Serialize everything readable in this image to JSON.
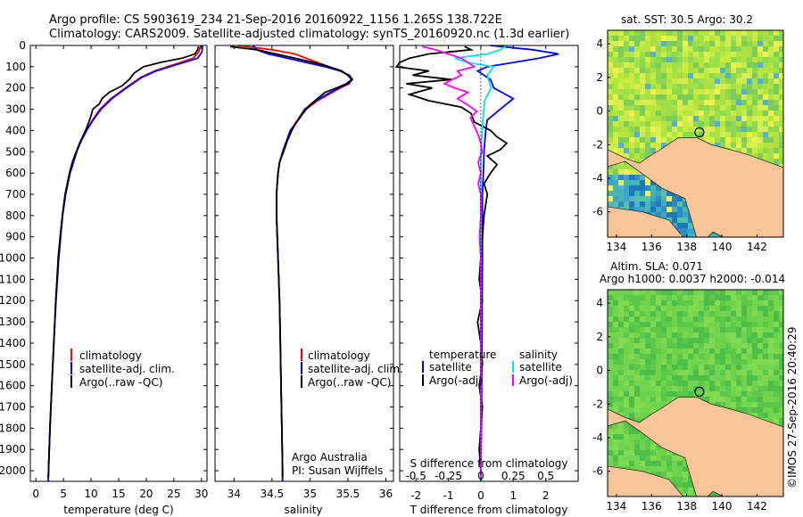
{
  "header": {
    "line1": "Argo profile: CS 5903619_234 21-Sep-2016 20160922_1156 1.265S 138.722E",
    "line2": "Climatology: CARS2009. Satellite-adjusted climatology: synTS_20160920.nc (1.3d earlier)"
  },
  "depth_ticks": [
    "0",
    "100",
    "200",
    "300",
    "400",
    "500",
    "600",
    "700",
    "800",
    "900",
    "1000",
    "1100",
    "1200",
    "1300",
    "1400",
    "1500",
    "1600",
    "1700",
    "1800",
    "1900",
    "2000"
  ],
  "colors": {
    "climatology": "#ff0000",
    "satellite": "#0000ff",
    "argo": "#000000",
    "cyan": "#00e5ee",
    "magenta": "#ff00ff",
    "land": "#f9c598",
    "sst_warm": "#a8e040",
    "sst_cool": "#2090c0"
  },
  "chart_data": [
    {
      "type": "line",
      "panel": "temperature",
      "xlabel": "temperature (deg C)",
      "xlim": [
        -1,
        31
      ],
      "ylim": [
        2050,
        0
      ],
      "xticks": [
        0,
        5,
        10,
        15,
        20,
        25,
        30
      ],
      "xtick_labels": [
        "0",
        "5",
        "10",
        "15",
        "20",
        "25",
        "30"
      ],
      "legend": [
        "climatology",
        "satellite-adj. clim.",
        "Argo(..raw -QC)"
      ],
      "series": [
        {
          "name": "climatology",
          "depth": [
            0,
            30,
            60,
            90,
            120,
            150,
            200,
            250,
            300,
            350,
            400,
            450,
            500,
            600,
            700,
            800,
            900,
            1000,
            1200,
            1400,
            1600,
            1800,
            2000,
            2050
          ],
          "values": [
            29.9,
            29.5,
            28.5,
            25,
            21.5,
            19,
            16.2,
            13.6,
            11.6,
            10.3,
            9.1,
            8.1,
            7.3,
            6.1,
            5.3,
            4.8,
            4.45,
            4.1,
            3.6,
            3.25,
            2.9,
            2.55,
            2.3,
            2.25
          ]
        },
        {
          "name": "satellite-adj. clim.",
          "depth": [
            0,
            30,
            60,
            90,
            120,
            150,
            200,
            250,
            300,
            350,
            400,
            450,
            500,
            600,
            700,
            800,
            900,
            1000,
            1200,
            1400,
            1600,
            1800,
            2000,
            2050
          ],
          "values": [
            30.2,
            30.1,
            29.3,
            25.5,
            21.8,
            19.2,
            16.4,
            13.8,
            11.8,
            10.4,
            9.2,
            8.2,
            7.4,
            6.2,
            5.4,
            4.85,
            4.5,
            4.15,
            3.65,
            3.25,
            2.9,
            2.55,
            2.3,
            2.25
          ]
        },
        {
          "name": "Argo(..raw -QC)",
          "depth": [
            5,
            20,
            40,
            60,
            80,
            100,
            130,
            160,
            190,
            220,
            250,
            275,
            300,
            330,
            360,
            400,
            450,
            500,
            550,
            600,
            650,
            700,
            800,
            900,
            1000,
            1200,
            1400,
            1600,
            1800,
            2000,
            2030
          ],
          "values": [
            29.5,
            29.3,
            28.8,
            26.5,
            22.5,
            19.5,
            17.8,
            16.9,
            15.6,
            13.3,
            12.0,
            11.5,
            10.3,
            10.0,
            9.6,
            9.0,
            8.1,
            7.3,
            6.6,
            6.1,
            5.7,
            5.3,
            4.8,
            4.4,
            4.05,
            3.6,
            3.25,
            2.9,
            2.55,
            2.3,
            2.25
          ]
        }
      ]
    },
    {
      "type": "line",
      "panel": "salinity",
      "xlabel": "salinity",
      "xlim": [
        33.75,
        36.1
      ],
      "ylim": [
        2050,
        0
      ],
      "xticks": [
        34,
        34.5,
        35,
        35.5,
        36
      ],
      "xtick_labels": [
        "34",
        "34.5",
        "35",
        "35.5",
        "36"
      ],
      "legend": [
        "climatology",
        "satellite-adj. clim.",
        "Argo(..raw -QC)"
      ],
      "annotation1": "Argo Australia",
      "annotation2": "PI: Susan Wijffels",
      "series": [
        {
          "name": "climatology",
          "depth": [
            0,
            20,
            40,
            60,
            80,
            100,
            120,
            140,
            160,
            180,
            200,
            230,
            260,
            300,
            350,
            400,
            450,
            500,
            550,
            600,
            700,
            800,
            900,
            1000,
            1200,
            1400,
            1600,
            1800,
            2000,
            2050
          ],
          "values": [
            34.05,
            34.5,
            34.8,
            34.95,
            35.1,
            35.25,
            35.4,
            35.5,
            35.55,
            35.52,
            35.4,
            35.25,
            35.1,
            34.95,
            34.85,
            34.75,
            34.7,
            34.65,
            34.6,
            34.58,
            34.56,
            34.56,
            34.57,
            34.58,
            34.6,
            34.61,
            34.62,
            34.63,
            34.64,
            34.64
          ]
        },
        {
          "name": "satellite-adj. clim.",
          "depth": [
            0,
            20,
            40,
            60,
            80,
            100,
            120,
            140,
            160,
            180,
            200,
            230,
            260,
            300,
            350,
            400,
            450,
            500,
            550,
            600,
            700,
            800,
            900,
            1000,
            1200,
            1400,
            1600,
            1800,
            2000,
            2050
          ],
          "values": [
            34.25,
            34.3,
            34.45,
            34.7,
            34.95,
            35.2,
            35.4,
            35.52,
            35.56,
            35.5,
            35.38,
            35.22,
            35.08,
            34.93,
            34.84,
            34.74,
            34.69,
            34.64,
            34.6,
            34.58,
            34.56,
            34.56,
            34.57,
            34.58,
            34.6,
            34.61,
            34.62,
            34.63,
            34.64,
            34.64
          ]
        },
        {
          "name": "Argo(..raw -QC)",
          "depth": [
            5,
            20,
            40,
            60,
            80,
            100,
            120,
            140,
            160,
            180,
            200,
            220,
            250,
            280,
            300,
            330,
            360,
            400,
            450,
            500,
            550,
            600,
            700,
            800,
            900,
            1000,
            1200,
            1400,
            1600,
            1800,
            2000,
            2030
          ],
          "values": [
            33.95,
            34.3,
            34.55,
            34.8,
            35.05,
            35.25,
            35.42,
            35.5,
            35.55,
            35.48,
            35.35,
            35.2,
            35.1,
            35.0,
            34.95,
            34.88,
            34.82,
            34.76,
            34.7,
            34.65,
            34.6,
            34.58,
            34.56,
            34.56,
            34.57,
            34.58,
            34.6,
            34.61,
            34.62,
            34.63,
            34.64,
            34.64
          ]
        }
      ]
    },
    {
      "type": "line",
      "panel": "difference",
      "title_top": "S difference from climatology",
      "xlabel": "T difference from climatology",
      "xlim": [
        -2.5,
        3
      ],
      "ylim": [
        2050,
        0
      ],
      "xticks": [
        -2,
        -1,
        0,
        1,
        2
      ],
      "xtick_labels": [
        "-2",
        "-1",
        "0",
        "1",
        "2"
      ],
      "s_ticks": [
        -0.5,
        -0.25,
        0,
        0.25,
        0.5
      ],
      "s_tick_labels": [
        "-0.5",
        "-0.25",
        "0",
        "0.25",
        "0.5"
      ],
      "legend_left_title": "temperature",
      "legend_right_title": "salinity",
      "legend_left": [
        "satellite",
        "Argo(-adj)"
      ],
      "legend_right": [
        "satellite",
        "Argo(-adj)"
      ],
      "series": [
        {
          "name": "temperature satellite",
          "depth": [
            0,
            20,
            40,
            60,
            80,
            100,
            120,
            140,
            160,
            200,
            250,
            300,
            350,
            400,
            500,
            600,
            700,
            800,
            1000,
            1200,
            1500,
            1800,
            2000,
            2050
          ],
          "values": [
            0.3,
            1.6,
            2.4,
            1.8,
            1.0,
            0.2,
            -0.1,
            0.1,
            0.3,
            0.4,
            1.0,
            0.6,
            0.2,
            0.15,
            0.1,
            0.08,
            0.05,
            0.05,
            0.05,
            0.04,
            0.03,
            0.02,
            0.0,
            0.0
          ]
        },
        {
          "name": "temperature Argo(-adj)",
          "depth": [
            5,
            20,
            40,
            60,
            80,
            100,
            120,
            140,
            160,
            180,
            200,
            230,
            260,
            290,
            320,
            360,
            400,
            430,
            460,
            490,
            520,
            560,
            600,
            650,
            700,
            800,
            900,
            1000,
            1100,
            1200,
            1300,
            1400,
            1500,
            1600,
            1700,
            1800,
            1900,
            2000,
            2030
          ],
          "values": [
            -0.5,
            -0.3,
            -1.6,
            -2.2,
            -2.5,
            -2.6,
            -1.6,
            -2.1,
            -0.9,
            -2.3,
            -1.5,
            -2.2,
            -1.6,
            -0.6,
            -0.3,
            -0.2,
            0.3,
            0.5,
            0.8,
            0.6,
            0.2,
            0.5,
            0.3,
            0.1,
            0.2,
            0.1,
            0.05,
            0.0,
            -0.05,
            0.05,
            -0.1,
            0.0,
            0.05,
            -0.05,
            0.05,
            0.0,
            -0.05,
            0.0,
            0.0
          ]
        },
        {
          "name": "salinity satellite",
          "depth": [
            0,
            20,
            40,
            60,
            80,
            100,
            140,
            200,
            260,
            320,
            400,
            500,
            600,
            800,
            1000,
            1300,
            1600,
            2000,
            2050
          ],
          "values": [
            0.2,
            0.15,
            0.05,
            -0.2,
            -0.1,
            0.1,
            0.05,
            0.08,
            0.03,
            0.02,
            0.01,
            0.0,
            0.0,
            0.0,
            0.0,
            0.0,
            0.0,
            0.0,
            0.0
          ]
        },
        {
          "name": "salinity Argo(-adj)",
          "depth": [
            5,
            20,
            40,
            60,
            80,
            100,
            120,
            140,
            160,
            180,
            200,
            220,
            250,
            280,
            310,
            340,
            380,
            420,
            460,
            500,
            550,
            600,
            650,
            700,
            800,
            900,
            1000,
            1200,
            1400,
            1600,
            1800,
            2000,
            2030
          ],
          "values": [
            -0.45,
            -0.35,
            -0.25,
            -0.15,
            -0.1,
            -0.05,
            -0.18,
            -0.15,
            -0.22,
            -0.28,
            -0.2,
            -0.1,
            -0.18,
            -0.1,
            -0.03,
            -0.08,
            -0.05,
            -0.02,
            0.0,
            0.01,
            -0.02,
            0.0,
            -0.02,
            0.0,
            0.0,
            -0.01,
            0.0,
            0.0,
            0.0,
            0.0,
            0.0,
            0.0,
            0.0
          ]
        }
      ]
    },
    {
      "type": "heatmap",
      "panel": "sst-map",
      "title": "sat. SST: 30.5  Argo: 30.2",
      "xlim": [
        133.5,
        143.5
      ],
      "ylim": [
        -7.5,
        4.8
      ],
      "xticks": [
        134,
        136,
        138,
        140,
        142
      ],
      "xtick_labels": [
        "134",
        "136",
        "138",
        "140",
        "142"
      ],
      "yticks": [
        4,
        2,
        0,
        -2,
        -4,
        -6
      ],
      "ytick_labels": [
        "4",
        "2",
        "0",
        "-2",
        "-4",
        "-6"
      ],
      "argo_position": {
        "lon": 138.722,
        "lat": -1.265
      }
    },
    {
      "type": "heatmap",
      "panel": "sla-map",
      "title1": "Altim. SLA: 0.071",
      "title2": "Argo h1000: 0.0037 h2000: -0.014",
      "xlim": [
        133.5,
        143.5
      ],
      "ylim": [
        -7.5,
        4.8
      ],
      "xticks": [
        134,
        136,
        138,
        140,
        142
      ],
      "xtick_labels": [
        "134",
        "136",
        "138",
        "140",
        "142"
      ],
      "yticks": [
        4,
        2,
        0,
        -2,
        -4,
        -6
      ],
      "ytick_labels": [
        "4",
        "2",
        "0",
        "-2",
        "-4",
        "-6"
      ],
      "argo_position": {
        "lon": 138.722,
        "lat": -1.265
      }
    }
  ],
  "credit": "©IMOS 27-Sep-2016 20:40:29"
}
